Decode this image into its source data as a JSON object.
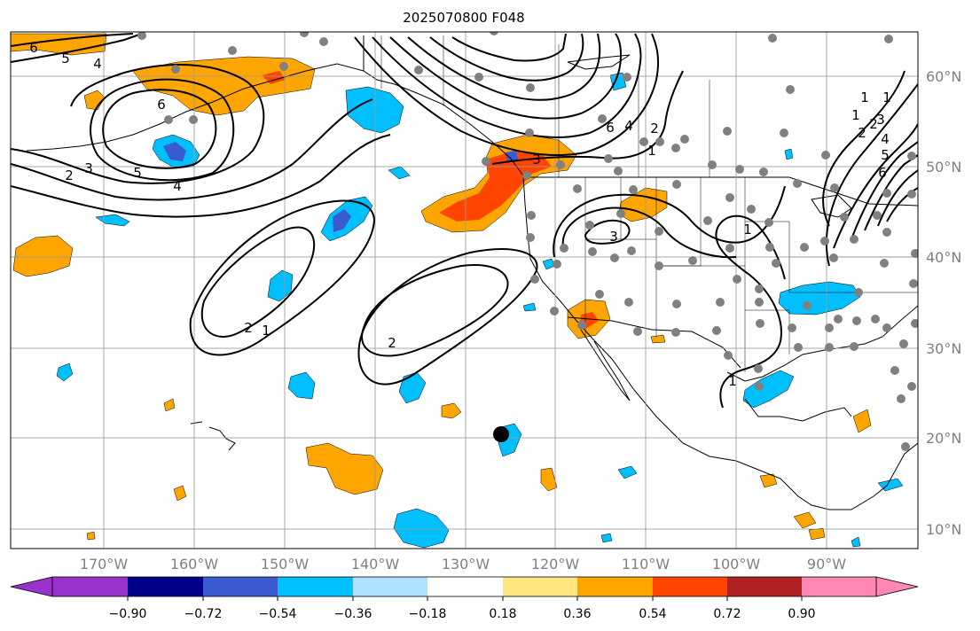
{
  "title": "2025070800 F048",
  "map": {
    "projection": "mercator",
    "lon_range": [
      -181,
      -80
    ],
    "lat_range": [
      8,
      65
    ],
    "lon_ticks": [
      "170°W",
      "160°W",
      "150°W",
      "140°W",
      "130°W",
      "120°W",
      "110°W",
      "100°W",
      "90°W"
    ],
    "lat_ticks": [
      "10°N",
      "20°N",
      "30°N",
      "40°N",
      "50°N",
      "60°N"
    ],
    "colors": {
      "land_outline": "#000000",
      "grid": "#9a9a9a",
      "station_dots": "#808080",
      "marker": "#000000"
    },
    "contour_labels": [
      "6",
      "5",
      "4",
      "6",
      "3",
      "2",
      "5",
      "4",
      "6",
      "4",
      "2",
      "1",
      "3",
      "1",
      "3",
      "1",
      "2",
      "1",
      "2",
      "1",
      "2",
      "1",
      "1",
      "2",
      "3",
      "4",
      "5",
      "6"
    ]
  },
  "colorbar": {
    "colors": [
      "#9932cc",
      "#00008b",
      "#3a5bcf",
      "#00bfff",
      "#b0e0ff",
      "#ffffff",
      "#ffe680",
      "#ffa500",
      "#ff4500",
      "#b22222",
      "#ff88b4"
    ],
    "tick_labels": [
      "−0.90",
      "−0.72",
      "−0.54",
      "−0.36",
      "−0.18",
      "0.18",
      "0.36",
      "0.54",
      "0.72",
      "0.90"
    ]
  }
}
